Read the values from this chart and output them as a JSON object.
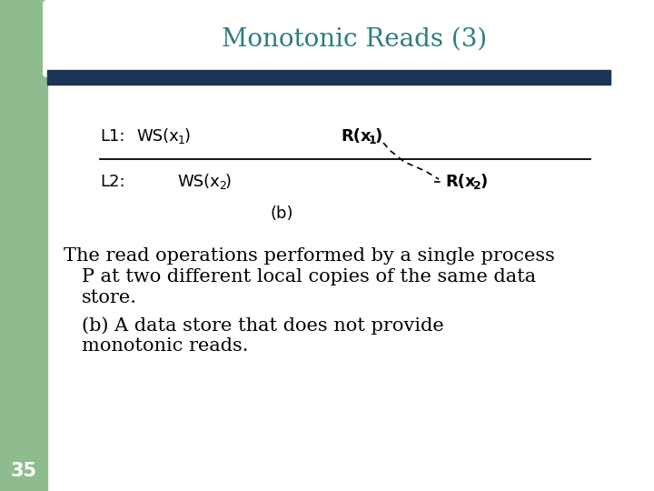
{
  "title": "Monotonic Reads (3)",
  "title_color": "#2E7D7D",
  "title_fontsize": 20,
  "bg_color": "#FFFFFF",
  "left_bar_color": "#8FBC8F",
  "header_bar_color": "#1C3557",
  "slide_number": "35",
  "slide_number_color": "#FFFFFF",
  "body_text_lines": [
    "The read operations performed by a single process",
    "    P at two different local copies of the same data",
    "    store.",
    "    (b) A data store that does not provide",
    "    monotonic reads."
  ],
  "body_fontsize": 15,
  "diagram_label_b": "(b)"
}
